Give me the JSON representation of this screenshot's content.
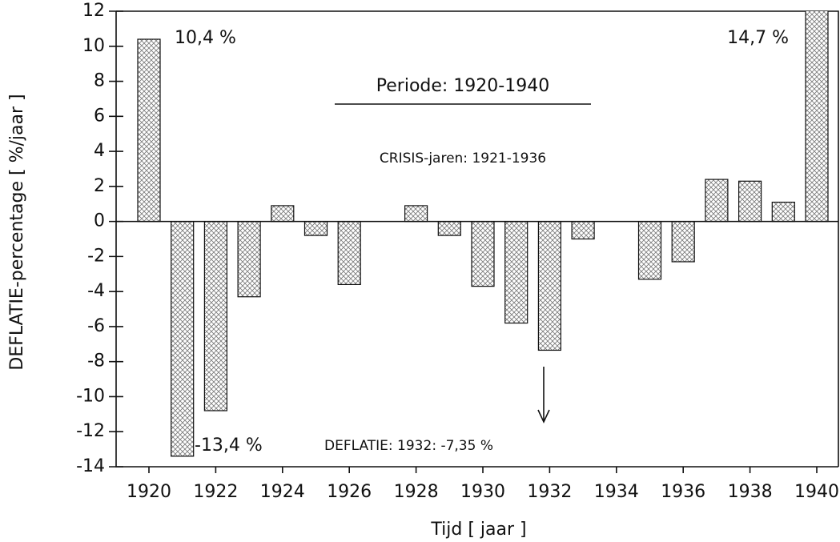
{
  "chart_data": {
    "type": "bar",
    "x_label": "Tijd [ jaar ]",
    "y_label": "DEFLATIE-percentage [ %/jaar ]",
    "categories": [
      "1920",
      null,
      "1922",
      null,
      "1924",
      null,
      "1926",
      null,
      "1928",
      null,
      "1930",
      null,
      "1932",
      null,
      "1934",
      null,
      "1936",
      null,
      "1938",
      null,
      "1940"
    ],
    "values": [
      10.4,
      -13.4,
      -10.8,
      -4.3,
      0.9,
      -0.8,
      -3.6,
      null,
      0.9,
      -0.8,
      -3.7,
      -5.8,
      -7.35,
      -1.0,
      null,
      -3.3,
      -2.3,
      2.4,
      2.3,
      1.1,
      14.7
    ],
    "value_labels": [
      "10,4 %",
      "-13,4 %",
      null,
      null,
      null,
      null,
      null,
      null,
      null,
      null,
      null,
      null,
      null,
      null,
      null,
      null,
      null,
      null,
      null,
      null,
      "14,7 %"
    ],
    "annotations": [
      "Periode: 1920-1940",
      "CRISIS-jaren: 1921-1936",
      "DEFLATIE: 1932: -7,35 %"
    ],
    "color": "#8a8a8a",
    "ylim": [
      -14,
      12
    ],
    "yticks": [
      -14,
      -12,
      -10,
      -8,
      -6,
      -4,
      -2,
      0,
      2,
      4,
      6,
      8,
      10,
      12
    ]
  }
}
